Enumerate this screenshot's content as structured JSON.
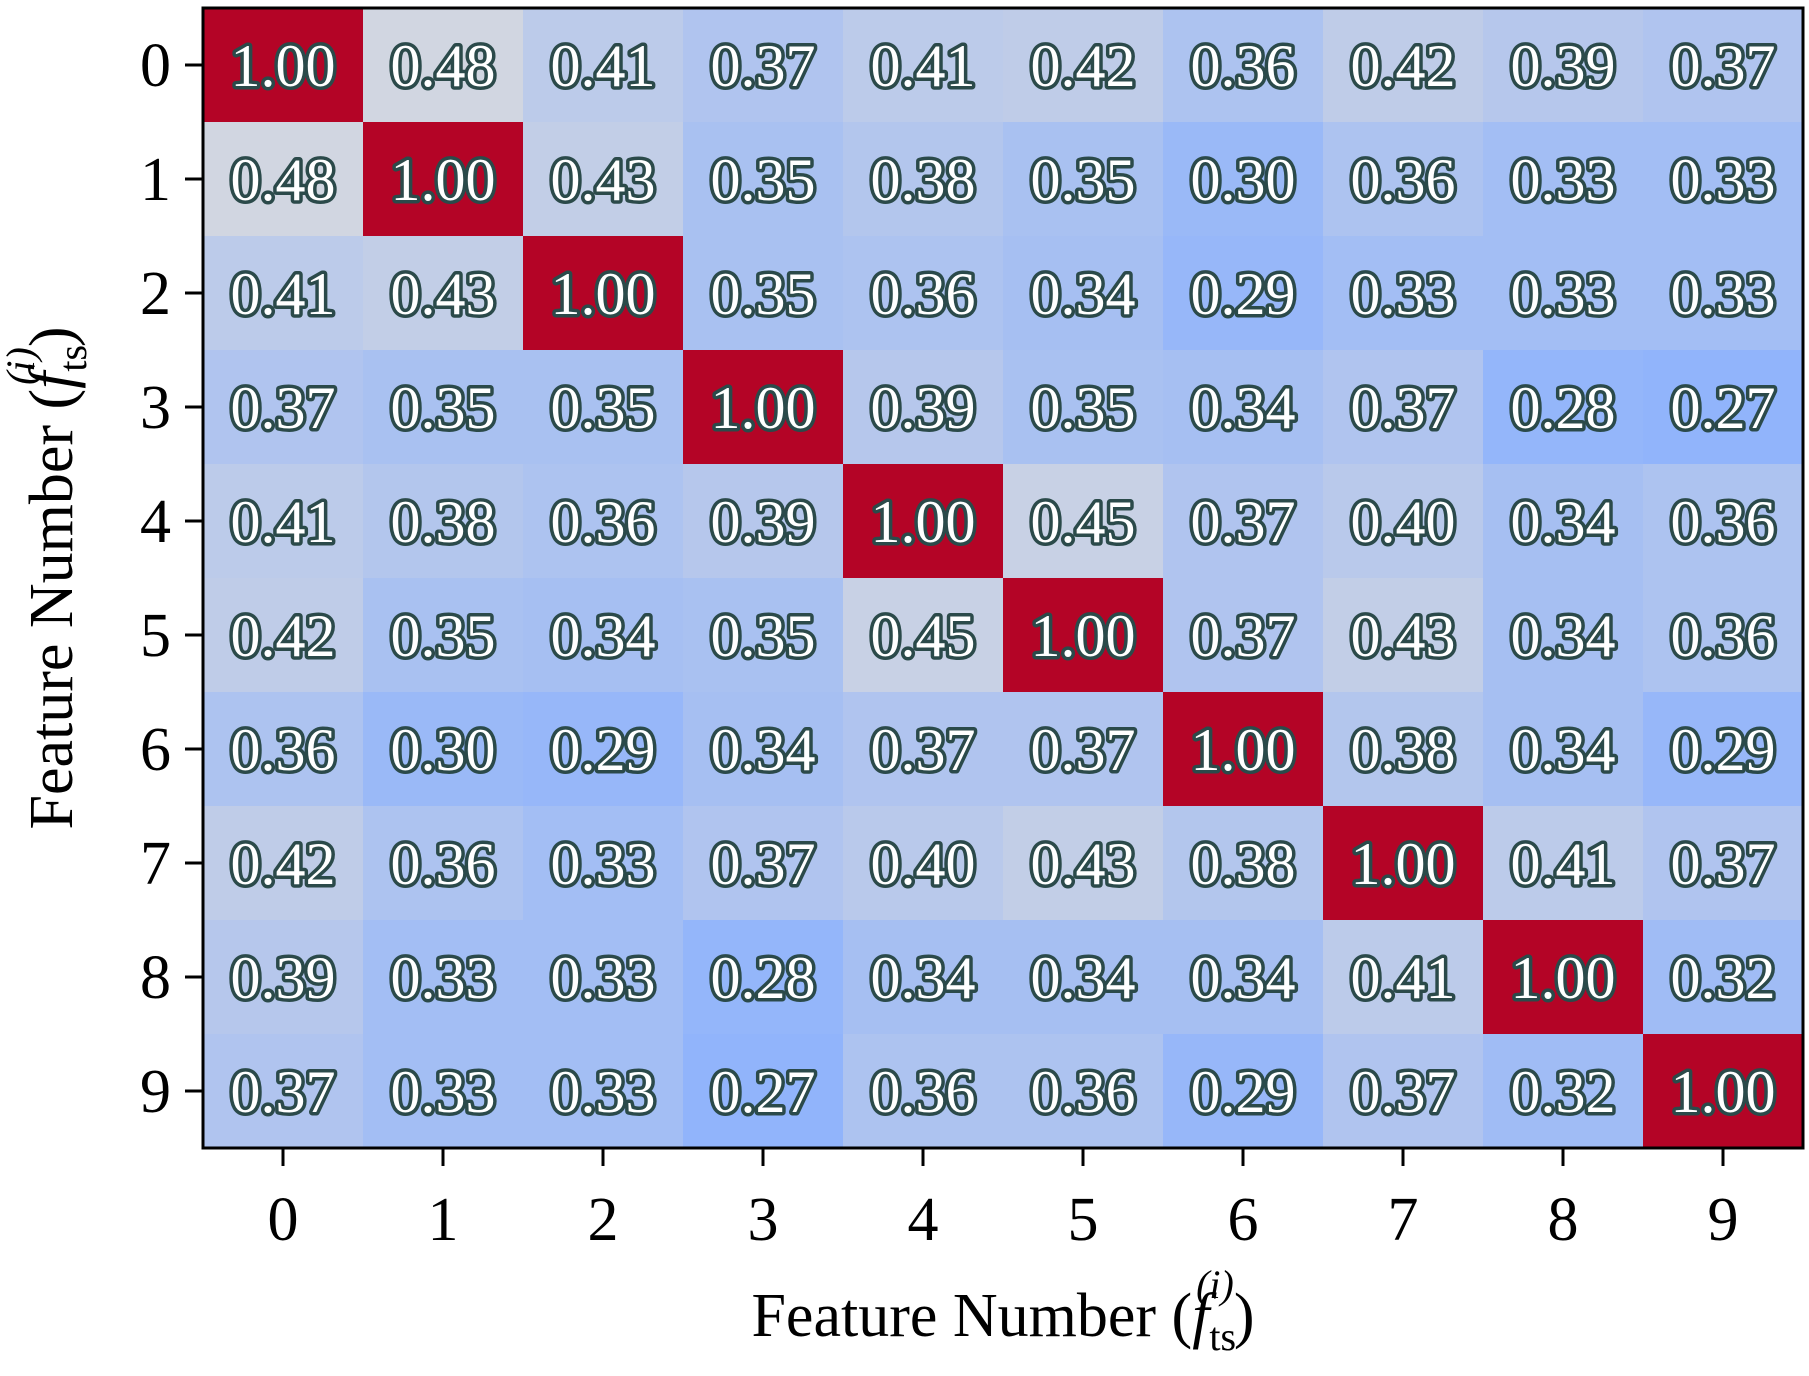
{
  "chart_data": {
    "type": "heatmap",
    "title": "",
    "xlabel": "Feature Number (f_ts^(i))",
    "ylabel": "Feature Number (f_ts^(i))",
    "axis_label_parts": {
      "prefix": "Feature Number (",
      "var": "f",
      "sub": "ts",
      "sup": "(i)",
      "suffix": ")"
    },
    "x_categories": [
      "0",
      "1",
      "2",
      "3",
      "4",
      "5",
      "6",
      "7",
      "8",
      "9"
    ],
    "y_categories": [
      "0",
      "1",
      "2",
      "3",
      "4",
      "5",
      "6",
      "7",
      "8",
      "9"
    ],
    "value_range": [
      0.27,
      1.0
    ],
    "colormap": {
      "low": "#91b4fb",
      "mid": "#dddcdc",
      "high": "#b40426"
    },
    "values": [
      [
        1.0,
        0.48,
        0.41,
        0.37,
        0.41,
        0.42,
        0.36,
        0.42,
        0.39,
        0.37
      ],
      [
        0.48,
        1.0,
        0.43,
        0.35,
        0.38,
        0.35,
        0.3,
        0.36,
        0.33,
        0.33
      ],
      [
        0.41,
        0.43,
        1.0,
        0.35,
        0.36,
        0.34,
        0.29,
        0.33,
        0.33,
        0.33
      ],
      [
        0.37,
        0.35,
        0.35,
        1.0,
        0.39,
        0.35,
        0.34,
        0.37,
        0.28,
        0.27
      ],
      [
        0.41,
        0.38,
        0.36,
        0.39,
        1.0,
        0.45,
        0.37,
        0.4,
        0.34,
        0.36
      ],
      [
        0.42,
        0.35,
        0.34,
        0.35,
        0.45,
        1.0,
        0.37,
        0.43,
        0.34,
        0.36
      ],
      [
        0.36,
        0.3,
        0.29,
        0.34,
        0.37,
        0.37,
        1.0,
        0.38,
        0.34,
        0.29
      ],
      [
        0.42,
        0.36,
        0.33,
        0.37,
        0.4,
        0.43,
        0.38,
        1.0,
        0.41,
        0.37
      ],
      [
        0.39,
        0.33,
        0.33,
        0.28,
        0.34,
        0.34,
        0.34,
        0.41,
        1.0,
        0.32
      ],
      [
        0.37,
        0.33,
        0.33,
        0.27,
        0.36,
        0.36,
        0.29,
        0.37,
        0.32,
        1.0
      ]
    ],
    "grid": false,
    "legend": "none"
  }
}
